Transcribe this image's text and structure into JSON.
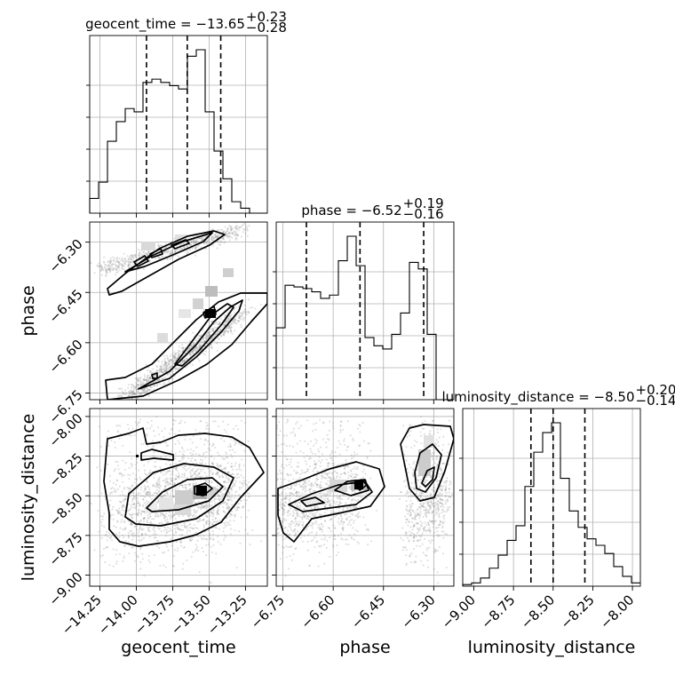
{
  "chart_data": {
    "type": "corner",
    "parameters": [
      "geocent_time",
      "phase",
      "luminosity_distance"
    ],
    "titles": {
      "geocent_time": {
        "label": "geocent_time = −13.65",
        "plus": "+0.23",
        "minus": "−0.28",
        "median": -13.65
      },
      "phase": {
        "label": "phase = −6.52",
        "plus": "+0.19",
        "minus": "−0.16",
        "median": -6.52
      },
      "luminosity_distance": {
        "label": "luminosity_distance = −8.50",
        "plus": "+0.20",
        "minus": "−0.14",
        "median": -8.5
      }
    },
    "ranges": {
      "geocent_time": [
        -14.32,
        -13.1
      ],
      "phase": [
        -6.77,
        -6.24
      ],
      "luminosity_distance": [
        -9.07,
        -7.95
      ]
    },
    "ticks": {
      "geocent_time": {
        "values": [
          -14.25,
          -14.0,
          -13.75,
          -13.5,
          -13.25
        ],
        "labels": [
          "−14.25",
          "−14.00",
          "−13.75",
          "−13.50",
          "−13.25"
        ]
      },
      "phase": {
        "values": [
          -6.75,
          -6.6,
          -6.45,
          -6.3
        ],
        "labels": [
          "−6.75",
          "−6.60",
          "−6.45",
          "−6.30"
        ]
      },
      "luminosity_distance": {
        "values": [
          -9.0,
          -8.75,
          -8.5,
          -8.25,
          -8.0
        ],
        "labels": [
          "−9.00",
          "−8.75",
          "−8.50",
          "−8.25",
          "−8.00"
        ]
      }
    },
    "quantiles": {
      "geocent_time": [
        -13.93,
        -13.65,
        -13.42
      ],
      "phase": [
        -6.68,
        -6.52,
        -6.33
      ],
      "luminosity_distance": [
        -8.64,
        -8.5,
        -8.3
      ]
    },
    "histograms": {
      "geocent_time": [
        0.09,
        0.19,
        0.44,
        0.56,
        0.64,
        0.62,
        0.8,
        0.82,
        0.8,
        0.78,
        0.76,
        0.96,
        1.0,
        0.62,
        0.38,
        0.21,
        0.07,
        0.03,
        0.0,
        0.0
      ],
      "phase": [
        0.44,
        0.7,
        0.69,
        0.68,
        0.66,
        0.62,
        0.64,
        0.85,
        1.0,
        0.82,
        0.38,
        0.33,
        0.31,
        0.4,
        0.53,
        0.84,
        0.8,
        0.4,
        0.0,
        0.0
      ],
      "luminosity_distance": [
        0.01,
        0.02,
        0.05,
        0.11,
        0.19,
        0.28,
        0.37,
        0.61,
        0.82,
        0.94,
        1.0,
        0.66,
        0.46,
        0.36,
        0.29,
        0.25,
        0.2,
        0.12,
        0.06,
        0.02
      ]
    },
    "axis_labels": {
      "x": [
        "geocent_time",
        "phase",
        "luminosity_distance"
      ],
      "y": [
        "phase",
        "luminosity_distance"
      ]
    },
    "grid": true,
    "legend": "none"
  }
}
